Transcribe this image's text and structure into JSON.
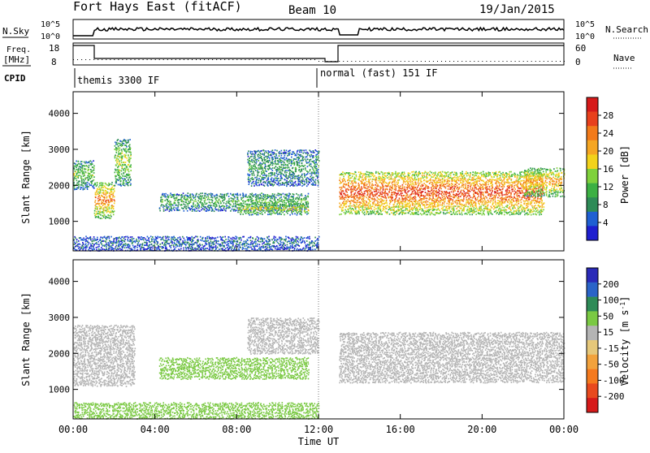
{
  "header": {
    "station": "Fort Hays East (fitACF)",
    "beam": "Beam 10",
    "date": "19/Jan/2015"
  },
  "summary_panels": {
    "nsky_label": "N.Sky",
    "nsearch_label": "N.Search",
    "freq_label_top": "Freq.",
    "freq_label_unit": "[MHz]",
    "nave_label": "Nave",
    "cpid_label": "CPID",
    "nsky_ticks": [
      "10^5",
      "10^0"
    ],
    "nsearch_ticks": [
      "10^5",
      "10^0"
    ],
    "freq_ticks": [
      "18",
      "8"
    ],
    "nave_ticks": [
      "60",
      "0"
    ],
    "cpid_segments": [
      {
        "label": "themis 3300 IF",
        "start_hour": 0
      },
      {
        "label": "normal (fast) 151 IF",
        "start_hour": 12
      }
    ]
  },
  "colors": {
    "power": [
      "#1e1ecf",
      "#1f5fd2",
      "#2e8b57",
      "#3cb043",
      "#7fd13b",
      "#f2d21b",
      "#f5a623",
      "#f27a1a",
      "#e8401c",
      "#d61a1a"
    ],
    "velocity": [
      "#2a2ab8",
      "#2a64c8",
      "#2e8b57",
      "#7ac943",
      "#b4b4b4",
      "#e6c87a",
      "#f2a23c",
      "#f57a1e",
      "#e84a1e",
      "#d61a1a"
    ]
  },
  "chart_data": [
    {
      "type": "heatmap",
      "name": "power",
      "ylabel": "Slant Range [km]",
      "ylim": [
        180,
        4600
      ],
      "yticks": [
        1000,
        2000,
        3000,
        4000
      ],
      "xlim": [
        0,
        24
      ],
      "colorbar": {
        "label": "Power [dB]",
        "ticks": [
          4,
          8,
          12,
          16,
          20,
          24,
          28
        ],
        "range": [
          0,
          32
        ]
      },
      "features": [
        {
          "t0": 0.0,
          "t1": 1.0,
          "r0": 1900,
          "r1": 2700,
          "level": 0.35
        },
        {
          "t0": 1.0,
          "t1": 2.0,
          "r0": 1100,
          "r1": 2100,
          "level": 0.6
        },
        {
          "t0": 2.0,
          "t1": 2.8,
          "r0": 2000,
          "r1": 3300,
          "level": 0.4
        },
        {
          "t0": 4.2,
          "t1": 11.5,
          "r0": 1300,
          "r1": 1800,
          "level": 0.3
        },
        {
          "t0": 8.0,
          "t1": 11.5,
          "r0": 1200,
          "r1": 1500,
          "level": 0.45
        },
        {
          "t0": 8.5,
          "t1": 12.0,
          "r0": 2000,
          "r1": 3000,
          "level": 0.25
        },
        {
          "t0": 13.0,
          "t1": 23.0,
          "r0": 1200,
          "r1": 2400,
          "level": 0.7
        },
        {
          "t0": 22.0,
          "t1": 24.0,
          "r0": 1700,
          "r1": 2500,
          "level": 0.55
        },
        {
          "t0": 0.0,
          "t1": 12.0,
          "r0": 200,
          "r1": 600,
          "level": 0.15
        }
      ]
    },
    {
      "type": "heatmap",
      "name": "velocity",
      "ylabel": "Slant Range [km]",
      "xlabel": "Time UT",
      "ylim": [
        180,
        4600
      ],
      "yticks": [
        1000,
        2000,
        3000,
        4000
      ],
      "xlim": [
        0,
        24
      ],
      "xticks": [
        "00:00",
        "04:00",
        "08:00",
        "12:00",
        "16:00",
        "20:00",
        "00:00"
      ],
      "colorbar": {
        "label": "Velocity [m s^-1]",
        "ticks": [
          200,
          100,
          50,
          15,
          -15,
          -50,
          -100,
          -200
        ]
      },
      "features": [
        {
          "t0": 0.0,
          "t1": 3.0,
          "r0": 1100,
          "r1": 2800,
          "velocity": 0
        },
        {
          "t0": 4.2,
          "t1": 11.5,
          "r0": 1300,
          "r1": 1900,
          "velocity": 40
        },
        {
          "t0": 8.5,
          "t1": 12.0,
          "r0": 2000,
          "r1": 3000,
          "velocity": 0
        },
        {
          "t0": 13.0,
          "t1": 24.0,
          "r0": 1200,
          "r1": 2600,
          "velocity": 0
        },
        {
          "t0": 0.0,
          "t1": 12.0,
          "r0": 200,
          "r1": 650,
          "velocity": 30
        }
      ]
    }
  ]
}
